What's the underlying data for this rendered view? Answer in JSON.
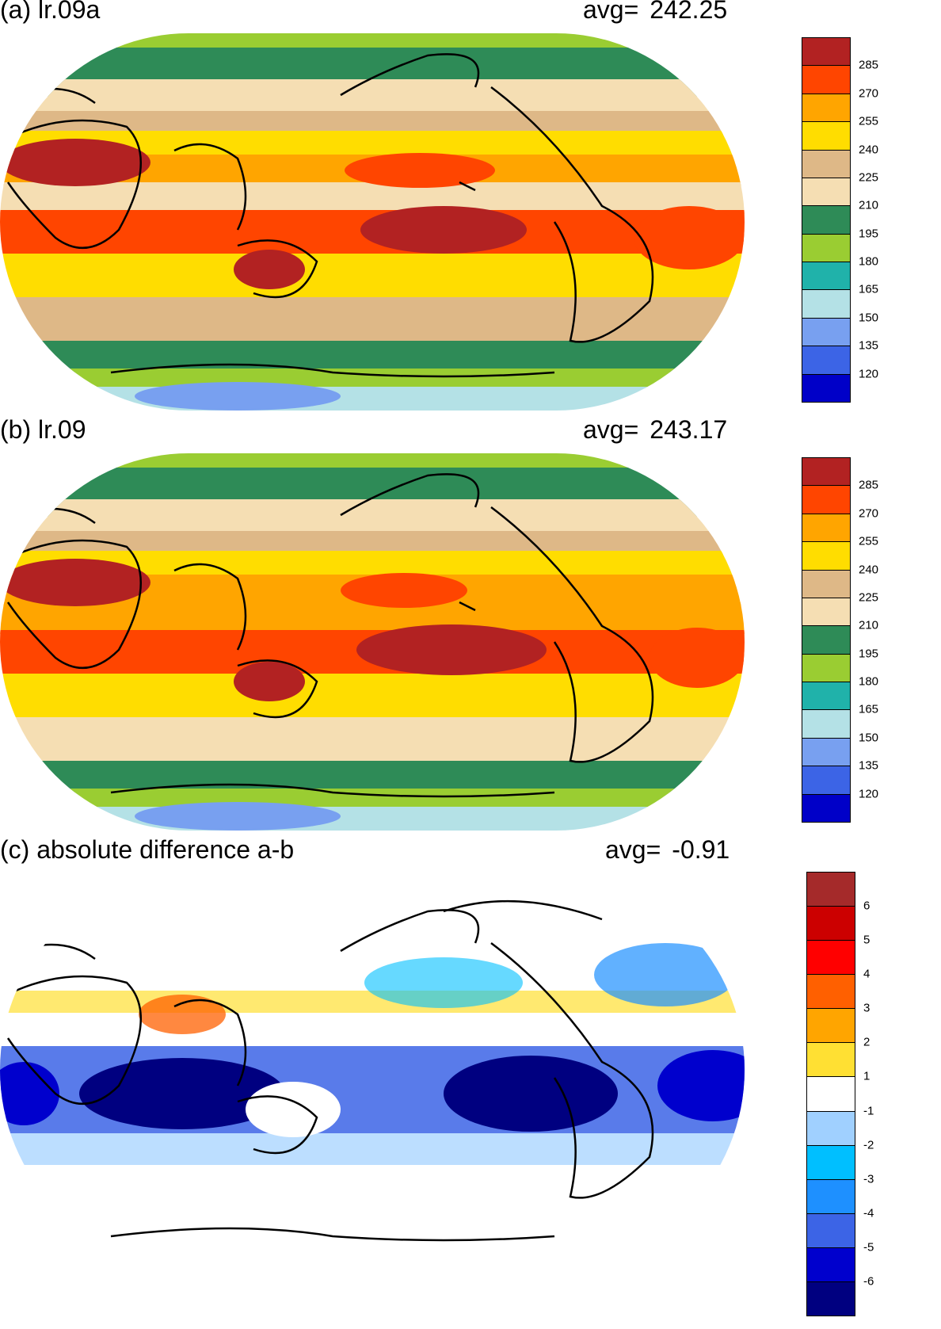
{
  "panels": [
    {
      "id": "a",
      "title": "(a) lr.09a",
      "avg_label": "avg=",
      "avg_value": "242.25",
      "colorbar": {
        "colors": [
          "#0000c8",
          "#3c64e6",
          "#78a0f0",
          "#b4e1e6",
          "#20b2aa",
          "#9acd32",
          "#2e8b57",
          "#f5deb3",
          "#deb887",
          "#ffdd00",
          "#ffa500",
          "#ff4500",
          "#b22222"
        ],
        "ticks": [
          "120",
          "135",
          "150",
          "165",
          "180",
          "195",
          "210",
          "225",
          "240",
          "255",
          "270",
          "285"
        ]
      }
    },
    {
      "id": "b",
      "title": "(b) lr.09",
      "avg_label": "avg=",
      "avg_value": "243.17",
      "colorbar": {
        "colors": [
          "#0000c8",
          "#3c64e6",
          "#78a0f0",
          "#b4e1e6",
          "#20b2aa",
          "#9acd32",
          "#2e8b57",
          "#f5deb3",
          "#deb887",
          "#ffdd00",
          "#ffa500",
          "#ff4500",
          "#b22222"
        ],
        "ticks": [
          "120",
          "135",
          "150",
          "165",
          "180",
          "195",
          "210",
          "225",
          "240",
          "255",
          "270",
          "285"
        ]
      }
    },
    {
      "id": "c",
      "title": "(c) absolute difference a-b",
      "avg_label": "avg=",
      "avg_value": "-0.91",
      "colorbar": {
        "colors": [
          "#000080",
          "#0000cd",
          "#3c64e6",
          "#1e90ff",
          "#00bfff",
          "#a0d0ff",
          "#ffffff",
          "#ffe033",
          "#ffa500",
          "#ff6000",
          "#ff0000",
          "#cc0000",
          "#a52a2a"
        ],
        "ticks": [
          "-6",
          "-5",
          "-4",
          "-3",
          "-2",
          "-1",
          "1",
          "2",
          "3",
          "4",
          "5",
          "6"
        ]
      }
    }
  ]
}
